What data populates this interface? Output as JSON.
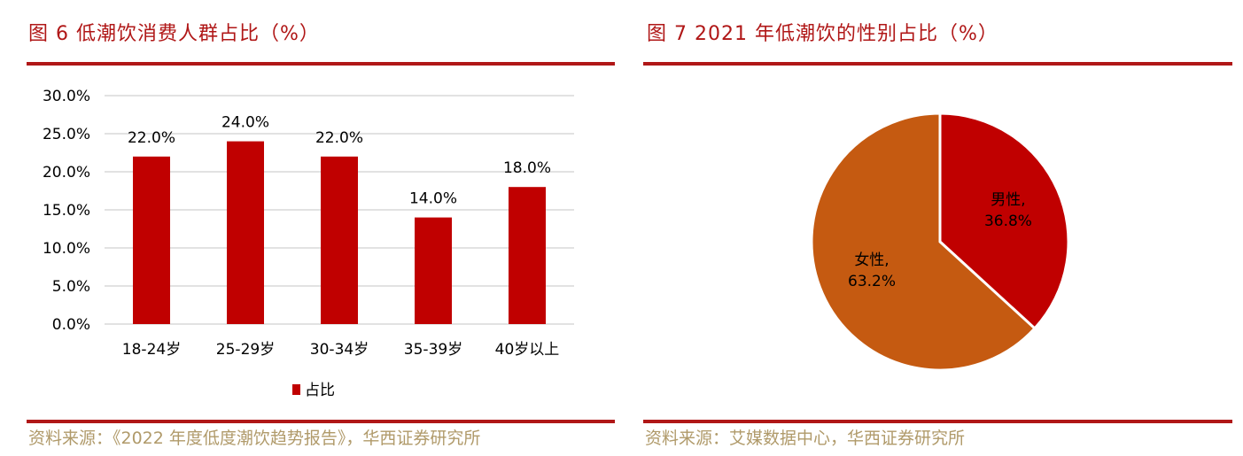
{
  "left": {
    "title": "图 6  低潮饮消费人群占比（%）",
    "source": "资料来源：《2022 年度低度潮饮趋势报告》，华西证券研究所"
  },
  "right": {
    "title": "图 7  2021 年低潮饮的性别占比（%）",
    "source": "资料来源：艾媒数据中心，华西证券研究所"
  },
  "colors": {
    "accent": "#b01717",
    "bar": "#c00000",
    "male": "#c00000",
    "female": "#c55a11"
  },
  "chart_data": [
    {
      "type": "bar",
      "categories": [
        "18-24岁",
        "25-29岁",
        "30-34岁",
        "35-39岁",
        "40岁以上"
      ],
      "series": [
        {
          "name": "占比",
          "values": [
            22.0,
            24.0,
            22.0,
            14.0,
            18.0
          ]
        }
      ],
      "data_labels": [
        "22.0%",
        "24.0%",
        "22.0%",
        "14.0%",
        "18.0%"
      ],
      "yticks": [
        "0.0%",
        "5.0%",
        "10.0%",
        "15.0%",
        "20.0%",
        "25.0%",
        "30.0%"
      ],
      "ylim": [
        0,
        30
      ],
      "legend": "bottom",
      "grid": true
    },
    {
      "type": "pie",
      "slices": [
        {
          "label": "男性,",
          "value": 36.8,
          "text": "36.8%"
        },
        {
          "label": "女性,",
          "value": 63.2,
          "text": "63.2%"
        }
      ]
    }
  ]
}
